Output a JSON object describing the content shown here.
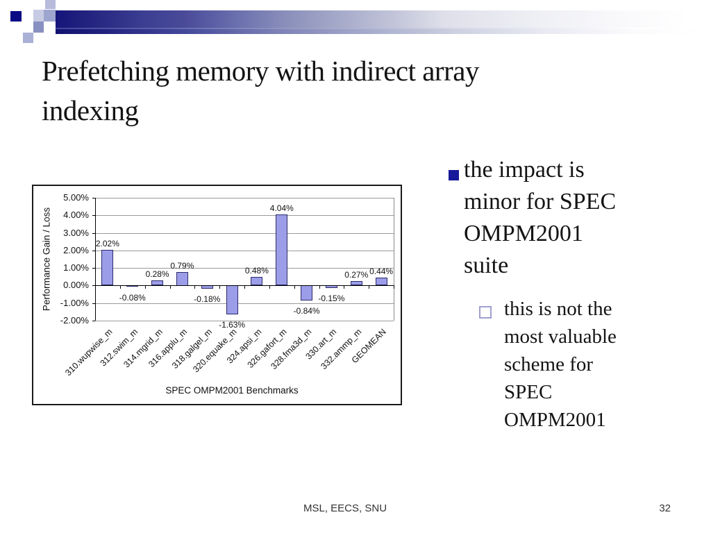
{
  "slide": {
    "title": "Prefetching memory with indirect array\nindexing"
  },
  "bullets": {
    "main": {
      "text": "the impact is\nminor for SPEC\nOMPM2001\nsuite"
    },
    "sub": {
      "text": "this is not the\nmost valuable\nscheme for\nSPEC\nOMPM2001"
    }
  },
  "footer": {
    "left": "MSL, EECS, SNU",
    "page": "32"
  },
  "icons": {
    "main_bullet": "filled-square-icon",
    "sub_bullet": "hollow-square-icon"
  },
  "colors": {
    "accent_navy": "#15157b",
    "bullet_square": "#18189a",
    "sub_bullet_border": "#9f9fd0",
    "bar_fill": "#9b9de8",
    "bar_border": "#2a2a6a",
    "gridline": "#9a9a9a"
  },
  "chart_data": {
    "type": "bar",
    "title": "",
    "xlabel": "SPEC OMPM2001 Benchmarks",
    "ylabel": "Performance Gain / Loss",
    "categories": [
      "310.wupwise_m",
      "312.swim_m",
      "314.mgrid_m",
      "316.applu_m",
      "318.galgel_m",
      "320.equake_m",
      "324.apsi_m",
      "326.gafort_m",
      "328.fma3d_m",
      "330.art_m",
      "332.ammp_m",
      "GEOMEAN"
    ],
    "values": [
      2.02,
      -0.08,
      0.28,
      0.79,
      -0.18,
      -1.63,
      0.48,
      4.04,
      -0.84,
      -0.15,
      0.27,
      0.44
    ],
    "data_labels": [
      "2.02%",
      "-0.08%",
      "0.28%",
      "0.79%",
      "-0.18%",
      "-1.63%",
      "0.48%",
      "4.04%",
      "-0.84%",
      "-0.15%",
      "0.27%",
      "0.44%"
    ],
    "ylim": [
      -2,
      5
    ],
    "ytick_values": [
      5,
      4,
      3,
      2,
      1,
      0,
      -1,
      -2
    ],
    "ytick_labels": [
      "5.00%",
      "4.00%",
      "3.00%",
      "2.00%",
      "1.00%",
      "0.00%",
      "-1.00%",
      "-2.00%"
    ],
    "grid": true,
    "legend": "none",
    "bar_color": "#9b9de8",
    "bar_border": "#2a2a6a"
  }
}
